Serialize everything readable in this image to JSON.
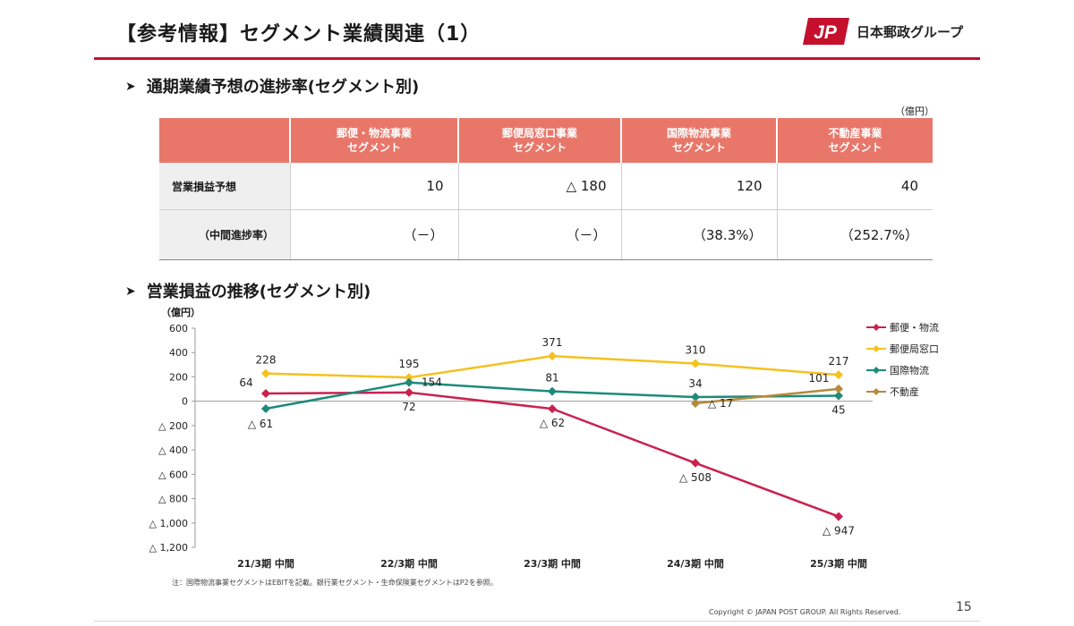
{
  "header": {
    "title": "【参考情報】セグメント業績関連（1）",
    "logo_mark": "JP",
    "logo_text": "日本郵政グループ",
    "colors": {
      "accent": "#c4102d",
      "table_header": "#e8776a"
    }
  },
  "progress_section": {
    "heading": "通期業績予想の進捗率(セグメント別)",
    "unit": "（億円）",
    "columns": [
      {
        "line1": "郵便・物流事業",
        "line2": "セグメント"
      },
      {
        "line1": "郵便局窓口事業",
        "line2": "セグメント"
      },
      {
        "line1": "国際物流事業",
        "line2": "セグメント"
      },
      {
        "line1": "不動産事業",
        "line2": "セグメント"
      }
    ],
    "rows": [
      {
        "label": "営業損益予想",
        "values": [
          "10",
          "△ 180",
          "120",
          "40"
        ]
      },
      {
        "label": "（中間進捗率）",
        "values": [
          "（－）",
          "（－）",
          "（38.3%）",
          "（252.7%）"
        ]
      }
    ]
  },
  "trend_section": {
    "heading": "営業損益の推移(セグメント別)"
  },
  "chart_data": {
    "type": "line",
    "unit": "（億円）",
    "categories": [
      "21/3期 中間",
      "22/3期 中間",
      "23/3期 中間",
      "24/3期 中間",
      "25/3期 中間"
    ],
    "ylim": [
      -1200,
      600
    ],
    "yticks": [
      600,
      400,
      200,
      0,
      -200,
      -400,
      -600,
      -800,
      -1000,
      -1200
    ],
    "ytick_labels": [
      "600",
      "400",
      "200",
      "0",
      "△ 200",
      "△ 400",
      "△ 600",
      "△ 800",
      "△ 1,000",
      "△ 1,200"
    ],
    "legend_position": "top-right",
    "series": [
      {
        "name": "郵便・物流",
        "color": "#c8234f",
        "values": [
          64,
          72,
          -62,
          -508,
          -947
        ],
        "labels": [
          "64",
          "72",
          "△ 62",
          "△ 508",
          "△ 947"
        ],
        "label_pos": [
          "above-left",
          "below",
          "below",
          "below",
          "below"
        ]
      },
      {
        "name": "郵便局窓口",
        "color": "#f5c11e",
        "values": [
          228,
          195,
          371,
          310,
          217
        ],
        "labels": [
          "228",
          "195",
          "371",
          "310",
          "217"
        ],
        "label_pos": [
          "above",
          "above",
          "above",
          "above",
          "above"
        ]
      },
      {
        "name": "国際物流",
        "color": "#1d8a7a",
        "values": [
          -61,
          154,
          81,
          34,
          45
        ],
        "labels": [
          "△ 61",
          "154",
          "81",
          "34",
          "45"
        ],
        "label_pos": [
          "below-left",
          "right",
          "above",
          "above",
          "below"
        ]
      },
      {
        "name": "不動産",
        "color": "#b58a3a",
        "values": [
          null,
          null,
          null,
          -17,
          101
        ],
        "labels": [
          "",
          "",
          "",
          "△ 17",
          "101"
        ],
        "label_pos": [
          "",
          "",
          "",
          "right",
          "above-left"
        ]
      }
    ]
  },
  "footer": {
    "note": "注：国際物流事業セグメントはEBITを記載。銀行業セグメント・生命保険業セグメントはP2を参照。",
    "copyright": "Copyright ©  JAPAN POST GROUP. All Rights Reserved.",
    "page_number": "15"
  }
}
